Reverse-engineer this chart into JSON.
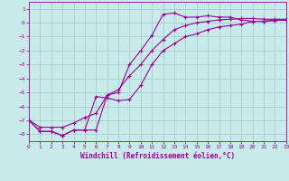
{
  "xlabel": "Windchill (Refroidissement éolien,°C)",
  "xlim": [
    0,
    23
  ],
  "ylim": [
    -8.5,
    1.5
  ],
  "xticks": [
    0,
    1,
    2,
    3,
    4,
    5,
    6,
    7,
    8,
    9,
    10,
    11,
    12,
    13,
    14,
    15,
    16,
    17,
    18,
    19,
    20,
    21,
    22,
    23
  ],
  "yticks": [
    1,
    0,
    -1,
    -2,
    -3,
    -4,
    -5,
    -6,
    -7,
    -8
  ],
  "bg_color": "#c8eaea",
  "line_color": "#990099",
  "grid_color": "#a0c8c8",
  "line1_x": [
    0,
    1,
    2,
    3,
    4,
    5,
    6,
    7,
    8,
    9,
    10,
    11,
    12,
    13,
    14,
    15,
    16,
    17,
    18,
    19,
    20,
    21,
    22,
    23
  ],
  "line1_y": [
    -7.0,
    -7.8,
    -7.8,
    -8.1,
    -7.7,
    -7.7,
    -7.7,
    -5.2,
    -5.0,
    -3.0,
    -2.0,
    -0.9,
    0.6,
    0.7,
    0.4,
    0.4,
    0.5,
    0.4,
    0.4,
    0.2,
    0.1,
    0.1,
    0.2,
    0.2
  ],
  "line2_x": [
    0,
    1,
    2,
    3,
    4,
    5,
    6,
    7,
    8,
    9,
    10,
    11,
    12,
    13,
    14,
    15,
    16,
    17,
    18,
    19,
    20,
    21,
    22,
    23
  ],
  "line2_y": [
    -7.0,
    -7.8,
    -7.8,
    -8.1,
    -7.7,
    -7.7,
    -5.3,
    -5.4,
    -5.6,
    -5.5,
    -4.5,
    -3.0,
    -2.0,
    -1.5,
    -1.0,
    -0.8,
    -0.5,
    -0.3,
    -0.2,
    -0.1,
    0.1,
    0.1,
    0.15,
    0.2
  ],
  "line3_x": [
    0,
    1,
    2,
    3,
    4,
    5,
    6,
    7,
    8,
    9,
    10,
    11,
    12,
    13,
    14,
    15,
    16,
    17,
    18,
    19,
    20,
    21,
    22,
    23
  ],
  "line3_y": [
    -7.0,
    -7.5,
    -7.5,
    -7.5,
    -7.2,
    -6.8,
    -6.5,
    -5.2,
    -4.8,
    -3.8,
    -3.0,
    -2.0,
    -1.2,
    -0.5,
    -0.2,
    0.0,
    0.1,
    0.2,
    0.25,
    0.3,
    0.3,
    0.25,
    0.25,
    0.25
  ]
}
